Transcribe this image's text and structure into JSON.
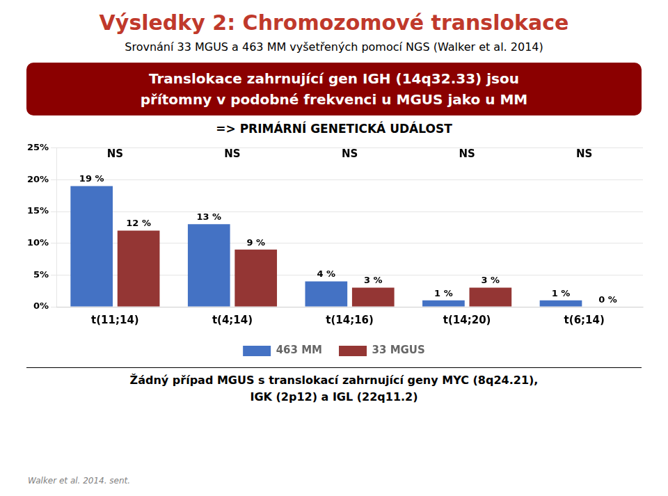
{
  "chart_data": {
    "type": "bar",
    "title": "Výsledky 2: Chromozomové translokace",
    "subtitle": "Srovnání 33 MGUS a 463 MM vyšetřených pomocí NGS (Walker et al. 2014)",
    "categories": [
      "t(11;14)",
      "t(4;14)",
      "t(14;16)",
      "t(14;20)",
      "t(6;14)"
    ],
    "series": [
      {
        "name": "463 MM",
        "color": "#4472C4",
        "values": [
          19,
          13,
          4,
          1,
          1
        ],
        "value_labels": [
          "19 %",
          "13 %",
          "4 %",
          "1 %",
          "1 %"
        ]
      },
      {
        "name": "33 MGUS",
        "color": "#943634",
        "values": [
          12,
          9,
          3,
          3,
          0
        ],
        "value_labels": [
          "12 %",
          "9 %",
          "3 %",
          "3 %",
          "0 %"
        ]
      }
    ],
    "ylim": [
      0,
      25
    ],
    "yticks": [
      {
        "value": 0,
        "label": "0%"
      },
      {
        "value": 5,
        "label": "5%"
      },
      {
        "value": 10,
        "label": "10%"
      },
      {
        "value": 15,
        "label": "15%"
      },
      {
        "value": 20,
        "label": "20%"
      },
      {
        "value": 25,
        "label": "25%"
      }
    ],
    "grid": true,
    "legend": "bottom",
    "data_labels": true,
    "annotations": [
      {
        "text": "NS",
        "category": "t(11;14)"
      },
      {
        "text": "NS",
        "category": "t(4;14)"
      },
      {
        "text": "NS",
        "category": "t(14;16)"
      },
      {
        "text": "NS",
        "category": "t(14;20)"
      },
      {
        "text": "NS",
        "category": "t(6;14)"
      },
      {
        "text": "Translokace zahrnující gen IGH (14q32.33) jsou"
      },
      {
        "text": "přítomny v podobné frekvenci u MGUS jako u MM"
      },
      {
        "text": "=> PRIMÁRNÍ GENETICKÁ UDÁLOST"
      },
      {
        "text": "Žádný případ MGUS s translokací zahrnující geny MYC (8q24.21),"
      },
      {
        "text": "IGK (2p12) a IGL (22q11.2)"
      },
      {
        "text": "Walker et al. 2014. sent."
      }
    ]
  }
}
